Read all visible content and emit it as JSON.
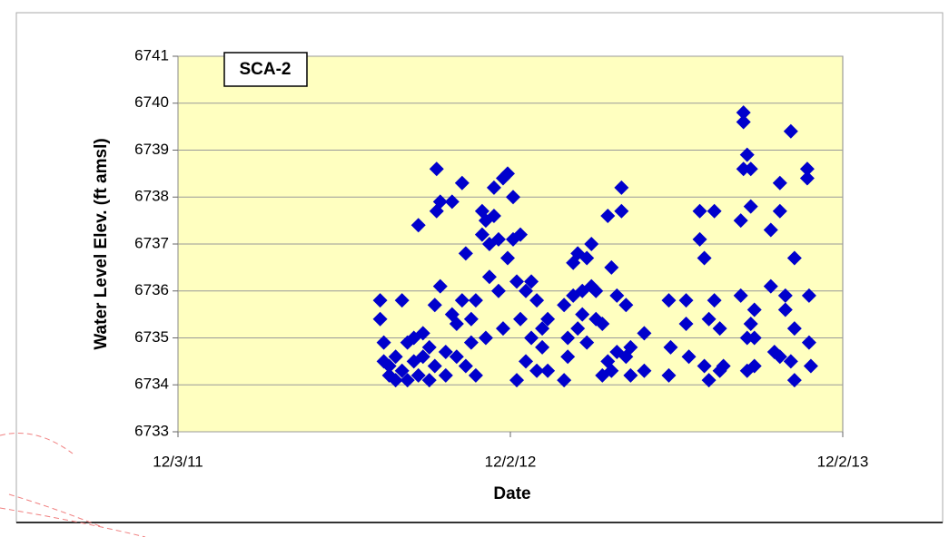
{
  "chart_data": {
    "type": "scatter",
    "title": "SCA-2",
    "xlabel": "Date",
    "ylabel": "Water Level Elev. (ft amsl)",
    "color": "#0000cc",
    "grid": true,
    "xlim": [
      "12/3/11",
      "12/2/13"
    ],
    "xticks": [
      "12/3/11",
      "12/2/12",
      "12/2/13"
    ],
    "ylim": [
      6733,
      6741
    ],
    "yticks": [
      6733,
      6734,
      6735,
      6736,
      6737,
      6738,
      6739,
      6740,
      6741
    ],
    "x": [
      "7/12/12",
      "7/12/12",
      "7/16/12",
      "7/16/12",
      "7/22/12",
      "7/22/12",
      "7/29/12",
      "7/29/12",
      "8/5/12",
      "8/5/12",
      "8/11/12",
      "8/11/12",
      "8/18/12",
      "8/18/12",
      "8/23/12",
      "8/23/12",
      "8/28/12",
      "8/28/12",
      "9/4/12",
      "9/4/12",
      "9/10/12",
      "9/10/12",
      "9/12/12",
      "9/12/12",
      "9/16/12",
      "9/16/12",
      "9/22/12",
      "9/22/12",
      "9/29/12",
      "9/29/12",
      "10/4/12",
      "10/4/12",
      "10/10/12",
      "10/10/12",
      "10/14/12",
      "10/14/12",
      "10/20/12",
      "10/20/12",
      "10/25/12",
      "10/25/12",
      "11/1/12",
      "11/1/12",
      "11/5/12",
      "11/5/12",
      "11/9/12",
      "11/9/12",
      "11/14/12",
      "11/14/12",
      "11/19/12",
      "11/19/12",
      "11/24/12",
      "11/24/12",
      "11/29/12",
      "11/29/12",
      "12/5/12",
      "12/5/12",
      "12/9/12",
      "12/9/12",
      "12/13/12",
      "12/13/12",
      "12/19/12",
      "12/19/12",
      "12/25/12",
      "12/25/12",
      "12/31/12",
      "12/31/12",
      "1/6/13",
      "1/6/13",
      "1/12/13",
      "1/12/13",
      "1/30/13",
      "1/30/13",
      "2/3/13",
      "2/3/13",
      "2/9/13",
      "2/9/13",
      "2/14/13",
      "2/14/13",
      "2/19/13",
      "2/19/13",
      "2/24/13",
      "2/24/13",
      "3/1/13",
      "3/1/13",
      "3/6/13",
      "3/6/13",
      "3/13/13",
      "3/13/13",
      "3/19/13",
      "3/19/13",
      "3/23/13",
      "3/23/13",
      "3/29/13",
      "3/29/13",
      "4/3/13",
      "4/3/13",
      "4/8/13",
      "4/8/13",
      "4/13/13",
      "4/13/13",
      "4/28/13",
      "4/28/13",
      "5/25/13",
      "5/25/13",
      "5/27/13",
      "6/13/13",
      "6/13/13",
      "6/16/13",
      "6/28/13",
      "6/28/13",
      "7/3/13",
      "7/3/13",
      "7/8/13",
      "7/8/13",
      "7/14/13",
      "7/14/13",
      "7/20/13",
      "7/20/13",
      "7/24/13",
      "8/12/13",
      "8/12/13",
      "8/15/13",
      "8/15/13",
      "8/15/13",
      "8/19/13",
      "8/19/13",
      "8/19/13",
      "8/23/13",
      "8/23/13",
      "8/23/13",
      "8/27/13",
      "8/27/13",
      "8/27/13",
      "9/14/13",
      "9/14/13",
      "9/18/13",
      "9/24/13",
      "9/24/13",
      "9/24/13",
      "9/30/13",
      "9/30/13",
      "10/6/13",
      "10/6/13",
      "10/10/13",
      "10/10/13",
      "10/10/13",
      "10/24/13",
      "10/24/13",
      "10/26/13",
      "10/26/13",
      "10/28/13"
    ],
    "values": [
      6735.4,
      6735.8,
      6734.5,
      6734.9,
      6734.2,
      6734.4,
      6734.1,
      6734.6,
      6735.8,
      6734.3,
      6734.9,
      6734.1,
      6735.0,
      6734.5,
      6737.4,
      6734.2,
      6735.1,
      6734.6,
      6734.8,
      6734.1,
      6735.7,
      6734.4,
      6737.7,
      6738.6,
      6737.9,
      6736.1,
      6734.7,
      6734.2,
      6737.9,
      6735.5,
      6735.3,
      6734.6,
      6738.3,
      6735.8,
      6736.8,
      6734.4,
      6735.4,
      6734.9,
      6734.2,
      6735.8,
      6737.7,
      6737.2,
      6737.5,
      6735.0,
      6737.0,
      6736.3,
      6738.2,
      6737.6,
      6736.0,
      6737.1,
      6738.4,
      6735.2,
      6738.5,
      6736.7,
      6738.0,
      6737.1,
      6736.2,
      6734.1,
      6737.2,
      6735.4,
      6736.0,
      6734.5,
      6736.2,
      6735.0,
      6735.8,
      6734.3,
      6735.2,
      6734.8,
      6735.4,
      6734.3,
      6735.7,
      6734.1,
      6735.0,
      6734.6,
      6736.6,
      6735.9,
      6736.8,
      6735.2,
      6736.0,
      6735.5,
      6736.7,
      6734.9,
      6737.0,
      6736.1,
      6735.4,
      6736.0,
      6734.2,
      6735.3,
      6737.6,
      6734.5,
      6736.5,
      6734.3,
      6735.9,
      6734.7,
      6738.2,
      6737.7,
      6734.6,
      6735.7,
      6734.2,
      6734.8,
      6735.1,
      6734.3,
      6735.8,
      6734.2,
      6734.8,
      6735.8,
      6735.3,
      6734.6,
      6737.7,
      6737.1,
      6736.7,
      6734.4,
      6735.4,
      6734.1,
      6737.7,
      6735.8,
      6735.2,
      6734.3,
      6734.4,
      6737.5,
      6735.9,
      6739.8,
      6739.6,
      6738.6,
      6738.9,
      6735.0,
      6734.3,
      6738.6,
      6737.8,
      6735.3,
      6735.6,
      6734.4,
      6735.0,
      6737.3,
      6736.1,
      6734.7,
      6738.3,
      6737.7,
      6734.6,
      6735.6,
      6735.9,
      6739.4,
      6734.5,
      6736.7,
      6735.2,
      6734.1,
      6738.6,
      6738.4,
      6735.9,
      6734.9,
      6734.4
    ]
  }
}
